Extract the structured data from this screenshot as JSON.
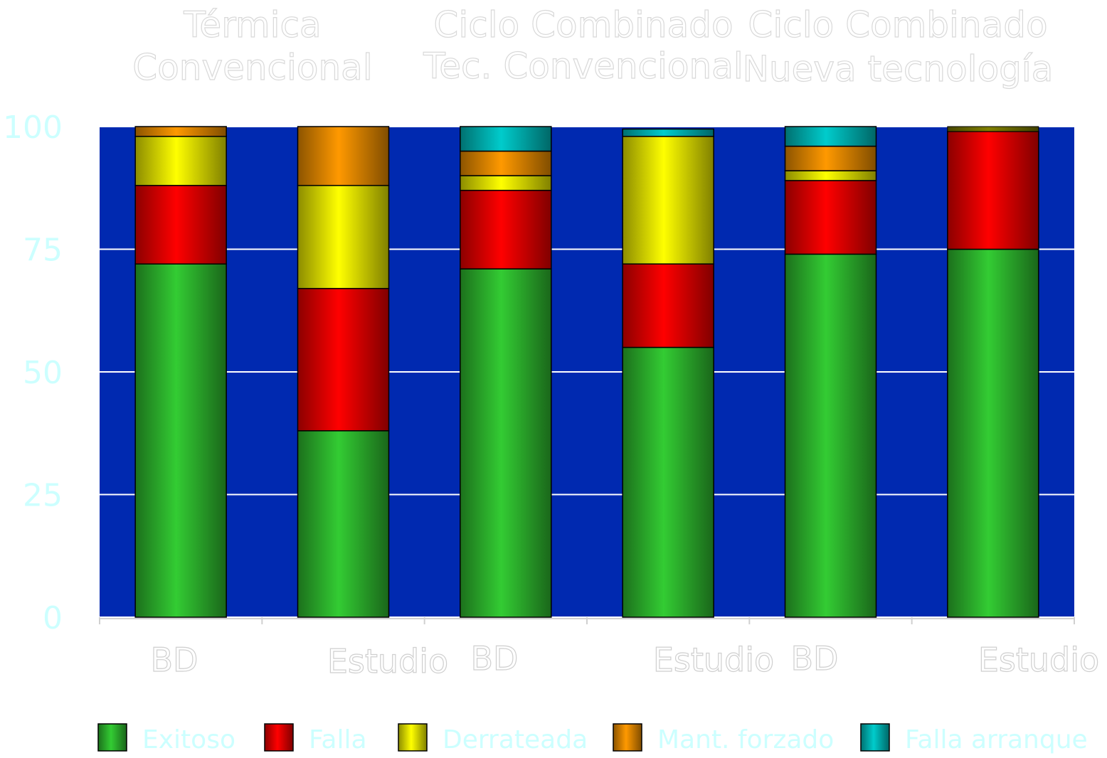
{
  "chart_data": {
    "type": "bar",
    "stacked": true,
    "group_titles": [
      [
        "Térmica",
        "Convencional"
      ],
      [
        "Ciclo Combinado",
        "Tec. Convencional"
      ],
      [
        "Ciclo Combinado",
        "Nueva tecnología"
      ]
    ],
    "categories": [
      "BD",
      "Estudio",
      "BD",
      "Estudio",
      "BD",
      "Estudio"
    ],
    "ylim": [
      0,
      100
    ],
    "yticks": [
      "0",
      "25",
      "50",
      "75",
      "100"
    ],
    "grid": true,
    "legend_position": "bottom",
    "plot_background": "#0029b0",
    "series": [
      {
        "name": "Exitoso",
        "color": "#33cc33",
        "values": [
          72,
          38,
          71,
          55,
          74,
          75
        ]
      },
      {
        "name": "Falla",
        "color": "#ff0000",
        "values": [
          16,
          29,
          16,
          17,
          15,
          24
        ]
      },
      {
        "name": "Derrateada",
        "color": "#ffff00",
        "values": [
          10,
          21,
          3,
          26,
          2,
          0
        ]
      },
      {
        "name": "Mant. forzado",
        "color": "#ff9900",
        "values": [
          2,
          12,
          5,
          0,
          5,
          0
        ]
      },
      {
        "name": "Falla arranque",
        "color": "#00cccc",
        "values": [
          0,
          0,
          5,
          1.5,
          4,
          0
        ]
      }
    ],
    "top_cap": {
      "color": "#808000",
      "values": [
        0,
        0,
        0,
        0,
        0,
        1
      ]
    }
  }
}
